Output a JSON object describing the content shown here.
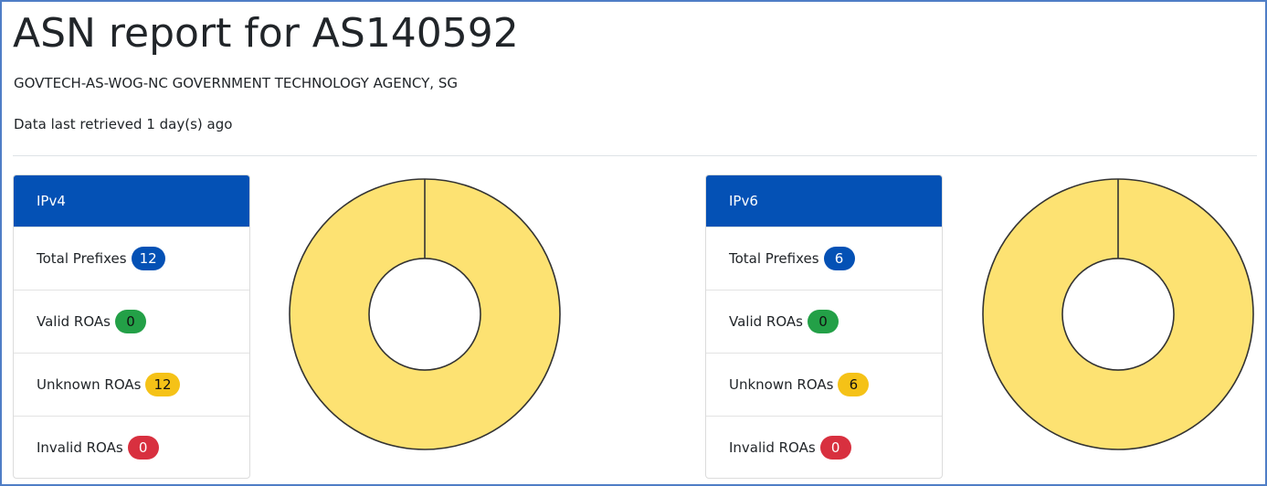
{
  "header": {
    "title": "ASN report for AS140592",
    "subtitle": "GOVTECH-AS-WOG-NC GOVERNMENT TECHNOLOGY AGENCY, SG",
    "retrieved": "Data last retrieved 1 day(s) ago"
  },
  "colors": {
    "header_blue": "#0451b5",
    "badge_total": "#0451b5",
    "badge_valid": "#23a047",
    "badge_unknown": "#f5c217",
    "badge_invalid": "#d8303f",
    "donut_unknown": "#fde272"
  },
  "ipv4": {
    "title": "IPv4",
    "total_label": "Total Prefixes",
    "total": "12",
    "valid_label": "Valid ROAs",
    "valid": "0",
    "unknown_label": "Unknown ROAs",
    "unknown": "12",
    "invalid_label": "Invalid ROAs",
    "invalid": "0"
  },
  "ipv6": {
    "title": "IPv6",
    "total_label": "Total Prefixes",
    "total": "6",
    "valid_label": "Valid ROAs",
    "valid": "0",
    "unknown_label": "Unknown ROAs",
    "unknown": "6",
    "invalid_label": "Invalid ROAs",
    "invalid": "0"
  },
  "chart_data": [
    {
      "type": "pie",
      "categories": [
        "Valid ROAs",
        "Unknown ROAs",
        "Invalid ROAs"
      ],
      "values": [
        0,
        12,
        0
      ],
      "colors": [
        "#23a047",
        "#fde272",
        "#d8303f"
      ],
      "donut": true
    },
    {
      "type": "pie",
      "categories": [
        "Valid ROAs",
        "Unknown ROAs",
        "Invalid ROAs"
      ],
      "values": [
        0,
        6,
        0
      ],
      "colors": [
        "#23a047",
        "#fde272",
        "#d8303f"
      ],
      "donut": true
    }
  ]
}
